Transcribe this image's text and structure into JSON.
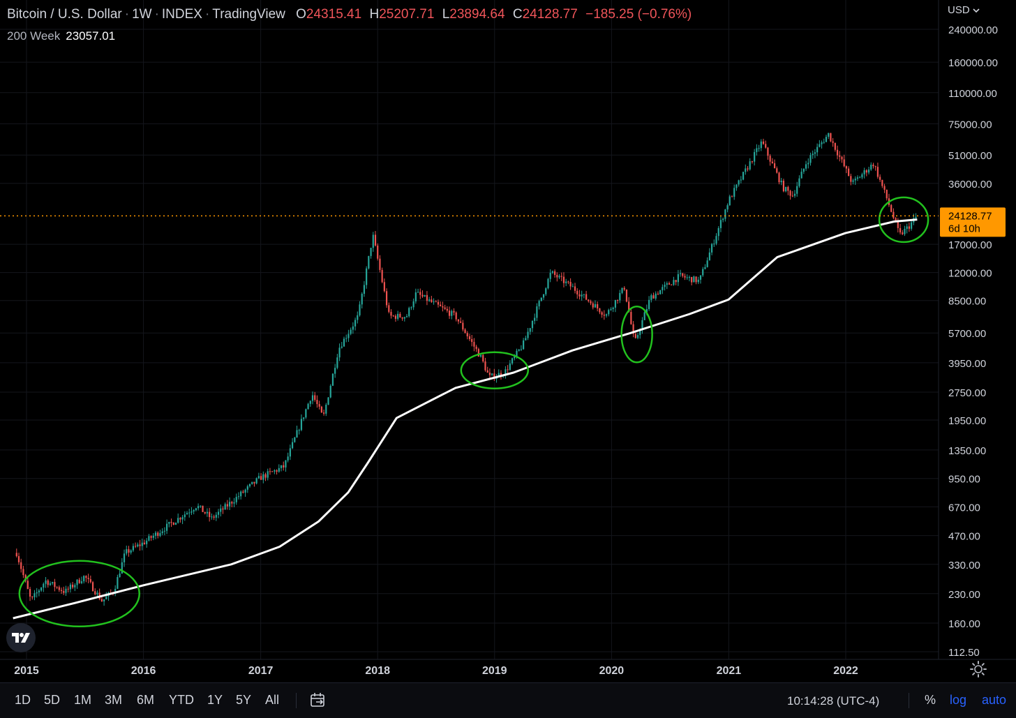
{
  "legend": {
    "symbol": "Bitcoin / U.S. Dollar",
    "interval": "1W",
    "exchange": "INDEX",
    "source": "TradingView",
    "o_label": "O",
    "o_value": "24315.41",
    "h_label": "H",
    "h_value": "25207.71",
    "l_label": "L",
    "l_value": "23894.64",
    "c_label": "C",
    "c_value": "24128.77",
    "change": "−185.25 (−0.76%)"
  },
  "indicator": {
    "name": "200 Week",
    "value": "23057.01"
  },
  "currency": "USD",
  "price_tag": {
    "price": "24128.77",
    "countdown": "6d 10h"
  },
  "colors": {
    "up": "#26a69a",
    "down": "#ef5350",
    "ma": "#ffffff",
    "highlight": "#22c11e",
    "price_line": "#ff9800",
    "grid": "#14161c"
  },
  "toolbar": {
    "ranges": [
      "1D",
      "5D",
      "1M",
      "3M",
      "6M",
      "YTD",
      "1Y",
      "5Y",
      "All"
    ],
    "time": "10:14:28 (UTC-4)",
    "percent": "%",
    "log": "log",
    "auto": "auto"
  },
  "chart_data": {
    "type": "candlestick",
    "y_scale": "log",
    "y_ticks": [
      "240000.00",
      "160000.00",
      "110000.00",
      "75000.00",
      "51000.00",
      "36000.00",
      "17000.00",
      "12000.00",
      "8500.00",
      "5700.00",
      "3950.00",
      "2750.00",
      "1950.00",
      "1350.00",
      "950.00",
      "670.00",
      "470.00",
      "330.00",
      "230.00",
      "160.00",
      "112.50"
    ],
    "x_ticks": [
      "2015",
      "2016",
      "2017",
      "2018",
      "2019",
      "2020",
      "2021",
      "2022"
    ],
    "grid": true,
    "last_price": 24128.77,
    "approx_close_path": [
      [
        "2014-12-01",
        380
      ],
      [
        "2015-01-15",
        210
      ],
      [
        "2015-03-01",
        270
      ],
      [
        "2015-05-01",
        235
      ],
      [
        "2015-07-01",
        285
      ],
      [
        "2015-08-25",
        210
      ],
      [
        "2015-10-01",
        240
      ],
      [
        "2015-11-05",
        380
      ],
      [
        "2016-01-01",
        430
      ],
      [
        "2016-06-15",
        680
      ],
      [
        "2016-08-01",
        580
      ],
      [
        "2016-12-31",
        960
      ],
      [
        "2017-03-15",
        1100
      ],
      [
        "2017-06-10",
        2700
      ],
      [
        "2017-07-15",
        2000
      ],
      [
        "2017-09-01",
        4700
      ],
      [
        "2017-11-01",
        7000
      ],
      [
        "2017-12-17",
        19000
      ],
      [
        "2018-02-06",
        7000
      ],
      [
        "2018-04-01",
        7000
      ],
      [
        "2018-05-01",
        9300
      ],
      [
        "2018-09-01",
        7000
      ],
      [
        "2018-11-20",
        4200
      ],
      [
        "2018-12-15",
        3300
      ],
      [
        "2019-02-01",
        3500
      ],
      [
        "2019-04-01",
        5000
      ],
      [
        "2019-06-26",
        12000
      ],
      [
        "2019-09-01",
        10000
      ],
      [
        "2019-12-15",
        7100
      ],
      [
        "2020-02-10",
        10000
      ],
      [
        "2020-03-13",
        5000
      ],
      [
        "2020-05-01",
        8800
      ],
      [
        "2020-08-01",
        11500
      ],
      [
        "2020-10-01",
        10800
      ],
      [
        "2020-12-31",
        29000
      ],
      [
        "2021-04-14",
        60000
      ],
      [
        "2021-06-20",
        34000
      ],
      [
        "2021-07-20",
        31000
      ],
      [
        "2021-09-01",
        47000
      ],
      [
        "2021-11-08",
        66000
      ],
      [
        "2022-01-22",
        36000
      ],
      [
        "2022-03-29",
        46000
      ],
      [
        "2022-05-12",
        29000
      ],
      [
        "2022-06-18",
        19000
      ],
      [
        "2022-07-15",
        21000
      ],
      [
        "2022-08-12",
        24128.77
      ]
    ],
    "series": [
      {
        "name": "200 Week",
        "points": [
          [
            "2014-11-20",
            170
          ],
          [
            "2015-06-01",
            205
          ],
          [
            "2016-01-01",
            255
          ],
          [
            "2016-10-01",
            330
          ],
          [
            "2017-03-01",
            410
          ],
          [
            "2017-07-01",
            560
          ],
          [
            "2017-10-01",
            800
          ],
          [
            "2017-12-01",
            1150
          ],
          [
            "2018-03-01",
            2000
          ],
          [
            "2018-09-01",
            2900
          ],
          [
            "2019-03-01",
            3500
          ],
          [
            "2019-09-01",
            4600
          ],
          [
            "2020-03-01",
            5700
          ],
          [
            "2020-09-01",
            7200
          ],
          [
            "2020-12-31",
            8600
          ],
          [
            "2021-06-01",
            14500
          ],
          [
            "2021-12-31",
            19500
          ],
          [
            "2022-06-01",
            22500
          ],
          [
            "2022-08-12",
            23057.01
          ]
        ]
      }
    ],
    "highlights": [
      {
        "center_date": "2015-06-15",
        "center_price": 230
      },
      {
        "center_date": "2019-01-01",
        "center_price": 3600
      },
      {
        "center_date": "2020-03-20",
        "center_price": 5600
      },
      {
        "center_date": "2022-07-01",
        "center_price": 23000
      }
    ]
  }
}
